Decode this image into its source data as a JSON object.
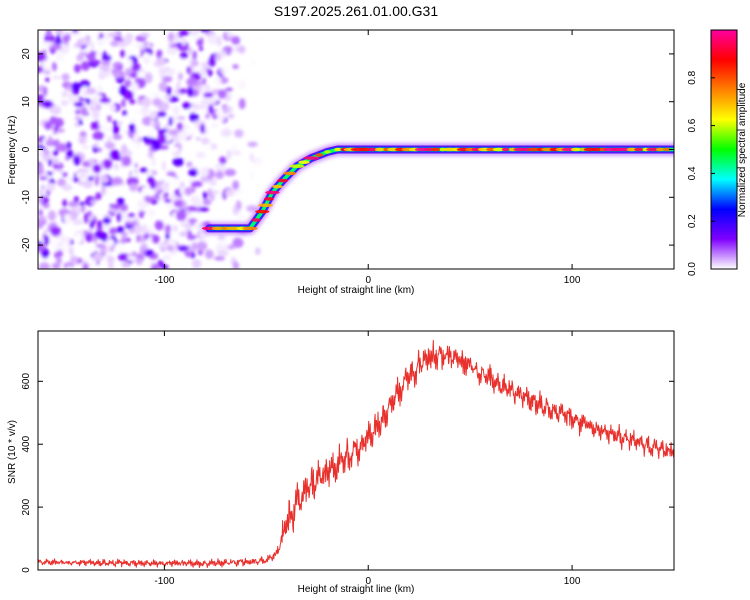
{
  "title": "S197.2025.261.01.00.G31",
  "colorbar": {
    "label": "Normalized spectral amplitude",
    "range": [
      0,
      1
    ],
    "ticks": [
      "0.0",
      "0.2",
      "0.4",
      "0.6",
      "0.8"
    ],
    "tick_values": [
      0.0,
      0.2,
      0.4,
      0.6,
      0.8
    ],
    "stops": [
      "#ffffff",
      "#7f00ff",
      "#0000ff",
      "#00ffff",
      "#00ff00",
      "#ffff00",
      "#ff8000",
      "#ff0000",
      "#ff00a0"
    ]
  },
  "chart_data": [
    {
      "type": "heatmap",
      "name": "spectrogram",
      "xlabel": "Height of straight line (km)",
      "ylabel": "Frequency (Hz)",
      "xlim": [
        -162,
        150
      ],
      "ylim": [
        -25,
        25
      ],
      "x_ticks": [
        -100,
        0,
        100
      ],
      "x_tick_labels": [
        "-100",
        "0",
        "100"
      ],
      "y_ticks": [
        -20,
        -10,
        0,
        10,
        20
      ],
      "y_tick_labels": [
        "-20",
        "-10",
        "0",
        "10",
        "20"
      ],
      "noise_region_x": [
        -162,
        -55
      ],
      "ridge": [
        {
          "x": -78,
          "f": -16.5
        },
        {
          "x": -58,
          "f": -16.5
        },
        {
          "x": -52,
          "f": -13
        },
        {
          "x": -47,
          "f": -9
        },
        {
          "x": -42,
          "f": -6.5
        },
        {
          "x": -35,
          "f": -3.5
        },
        {
          "x": -28,
          "f": -1.8
        },
        {
          "x": -20,
          "f": -0.5
        },
        {
          "x": -15,
          "f": 0
        },
        {
          "x": 150,
          "f": 0
        }
      ]
    },
    {
      "type": "line",
      "name": "snr",
      "xlabel": "Height of straight line (km)",
      "ylabel": "SNR (10 * v/v)",
      "xlim": [
        -162,
        150
      ],
      "ylim": [
        0,
        760
      ],
      "x_ticks": [
        -100,
        0,
        100
      ],
      "x_tick_labels": [
        "-100",
        "0",
        "100"
      ],
      "y_ticks": [
        0,
        200,
        400,
        600
      ],
      "y_tick_labels": [
        "0",
        "200",
        "400",
        "600"
      ],
      "color": "#e8302c",
      "envelope": [
        {
          "x": -162,
          "y": 25
        },
        {
          "x": -80,
          "y": 20
        },
        {
          "x": -50,
          "y": 30
        },
        {
          "x": -45,
          "y": 50
        },
        {
          "x": -40,
          "y": 150
        },
        {
          "x": -30,
          "y": 260
        },
        {
          "x": -20,
          "y": 310
        },
        {
          "x": -10,
          "y": 360
        },
        {
          "x": 0,
          "y": 420
        },
        {
          "x": 10,
          "y": 520
        },
        {
          "x": 20,
          "y": 620
        },
        {
          "x": 30,
          "y": 680
        },
        {
          "x": 40,
          "y": 680
        },
        {
          "x": 50,
          "y": 650
        },
        {
          "x": 60,
          "y": 610
        },
        {
          "x": 80,
          "y": 540
        },
        {
          "x": 100,
          "y": 480
        },
        {
          "x": 120,
          "y": 430
        },
        {
          "x": 140,
          "y": 390
        },
        {
          "x": 150,
          "y": 380
        }
      ],
      "oscillation_amplitude": [
        {
          "x": -162,
          "a": 10
        },
        {
          "x": -45,
          "a": 15
        },
        {
          "x": -40,
          "a": 70
        },
        {
          "x": 0,
          "a": 60
        },
        {
          "x": 40,
          "a": 50
        },
        {
          "x": 150,
          "a": 35
        }
      ]
    }
  ]
}
